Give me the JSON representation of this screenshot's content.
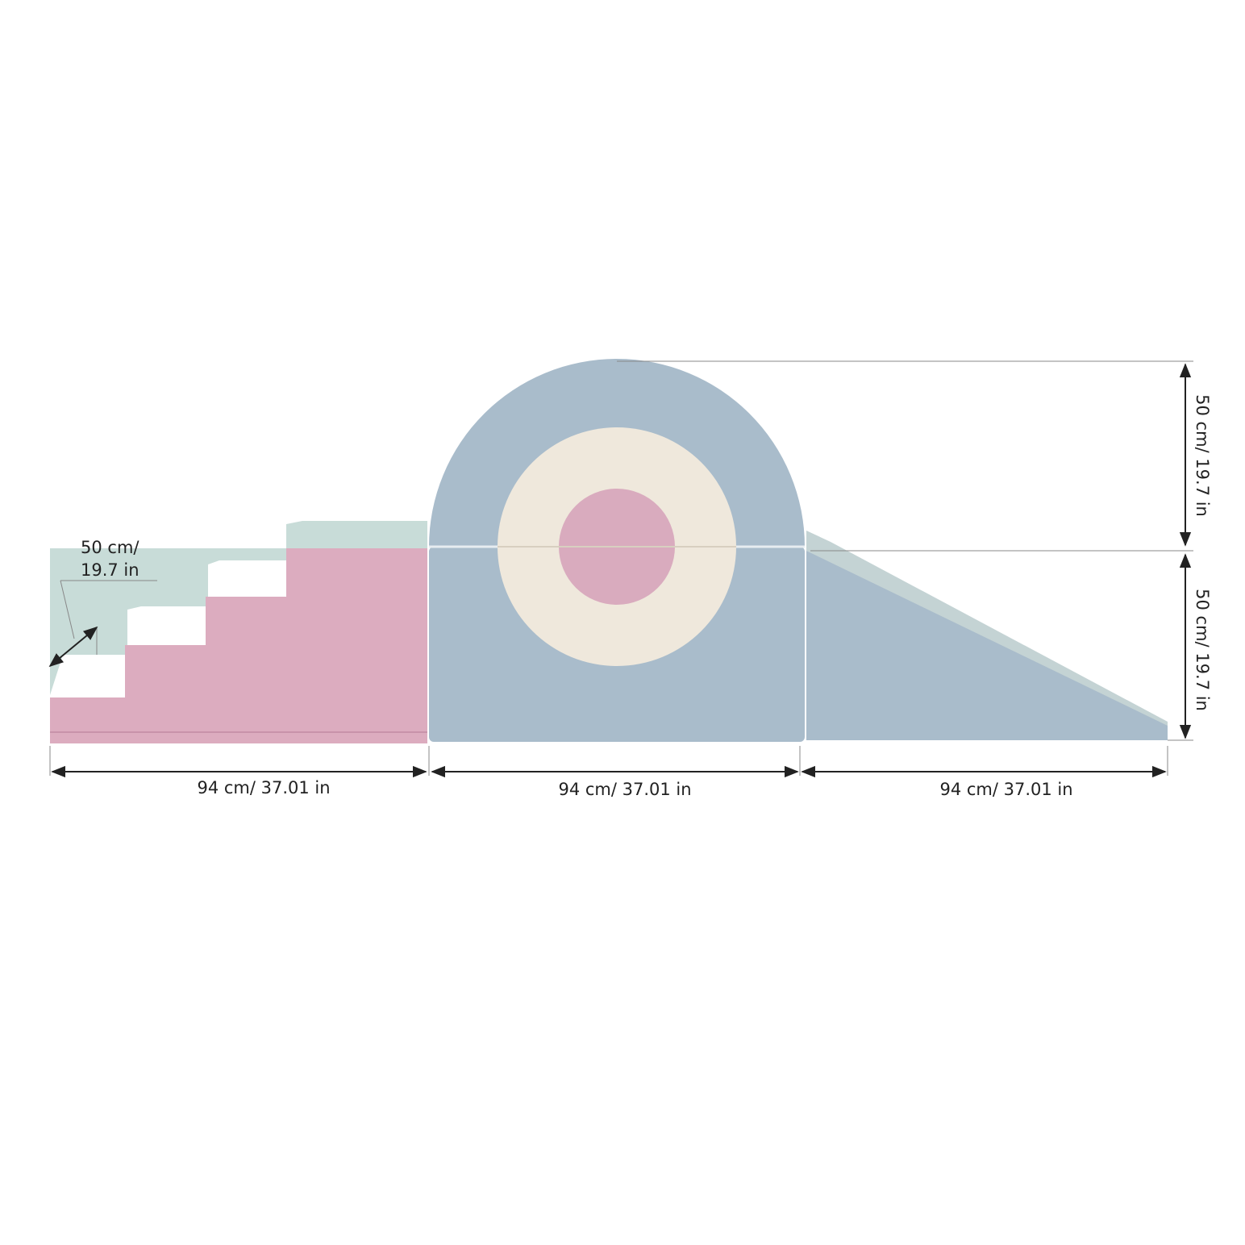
{
  "dimensions": {
    "depth": [
      "50 cm/",
      "19.7 in"
    ],
    "height_upper": "50 cm/ 19.7 in",
    "height_lower": "50 cm/ 19.7 in",
    "widths": [
      "94 cm/ 37.01 in",
      "94 cm/ 37.01 in",
      "94 cm/ 37.01 in"
    ]
  }
}
